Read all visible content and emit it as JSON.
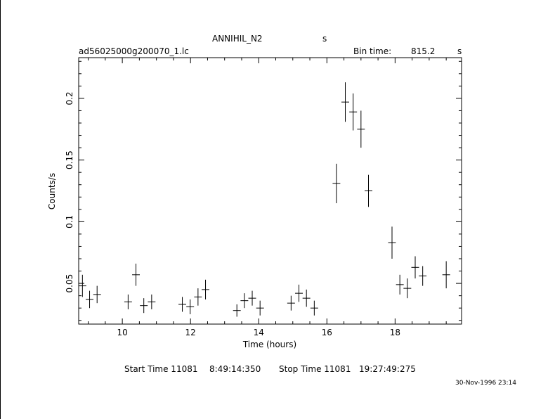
{
  "header": {
    "object": "ANNIHIL_N2",
    "unit_s": "s",
    "filename": "ad56025000g200070_1.lc",
    "bin_label": "Bin time:",
    "bin_value": "815.2",
    "bin_unit": "s"
  },
  "footer": {
    "start_label": "Start Time 11081",
    "start_value": "8:49:14:350",
    "stop_label": "Stop Time 11081",
    "stop_value": "19:27:49:275",
    "date_stamp": "30-Nov-1996 23:14"
  },
  "chart_data": {
    "type": "scatter",
    "xlabel": "Time (hours)",
    "ylabel": "Counts/s",
    "xlim": [
      8.72,
      19.95
    ],
    "ylim": [
      0.017,
      0.233
    ],
    "x_ticks": [
      10,
      12,
      14,
      16,
      18
    ],
    "x_tick_labels": [
      "10",
      "12",
      "14",
      "16",
      "18"
    ],
    "y_ticks": [
      0.05,
      0.1,
      0.15,
      0.2
    ],
    "y_tick_labels": [
      "0.05",
      "0.1",
      "0.15",
      "0.2"
    ],
    "x_error_hours": 0.113,
    "points": [
      {
        "x": 8.83,
        "y": 0.048,
        "err": 0.009
      },
      {
        "x": 9.04,
        "y": 0.037,
        "err": 0.007
      },
      {
        "x": 9.26,
        "y": 0.041,
        "err": 0.007
      },
      {
        "x": 10.17,
        "y": 0.035,
        "err": 0.006
      },
      {
        "x": 10.4,
        "y": 0.057,
        "err": 0.009
      },
      {
        "x": 10.63,
        "y": 0.032,
        "err": 0.006
      },
      {
        "x": 10.86,
        "y": 0.035,
        "err": 0.006
      },
      {
        "x": 11.76,
        "y": 0.033,
        "err": 0.006
      },
      {
        "x": 11.99,
        "y": 0.031,
        "err": 0.006
      },
      {
        "x": 12.22,
        "y": 0.039,
        "err": 0.007
      },
      {
        "x": 12.44,
        "y": 0.045,
        "err": 0.008
      },
      {
        "x": 13.36,
        "y": 0.028,
        "err": 0.005
      },
      {
        "x": 13.58,
        "y": 0.036,
        "err": 0.006
      },
      {
        "x": 13.81,
        "y": 0.038,
        "err": 0.006
      },
      {
        "x": 14.04,
        "y": 0.03,
        "err": 0.006
      },
      {
        "x": 14.95,
        "y": 0.034,
        "err": 0.006
      },
      {
        "x": 15.18,
        "y": 0.042,
        "err": 0.007
      },
      {
        "x": 15.4,
        "y": 0.038,
        "err": 0.007
      },
      {
        "x": 15.63,
        "y": 0.03,
        "err": 0.006
      },
      {
        "x": 16.28,
        "y": 0.131,
        "err": 0.016
      },
      {
        "x": 16.54,
        "y": 0.197,
        "err": 0.016
      },
      {
        "x": 16.77,
        "y": 0.189,
        "err": 0.015
      },
      {
        "x": 17.0,
        "y": 0.175,
        "err": 0.015
      },
      {
        "x": 17.22,
        "y": 0.125,
        "err": 0.013
      },
      {
        "x": 17.91,
        "y": 0.083,
        "err": 0.013
      },
      {
        "x": 18.14,
        "y": 0.049,
        "err": 0.008
      },
      {
        "x": 18.36,
        "y": 0.046,
        "err": 0.008
      },
      {
        "x": 18.59,
        "y": 0.063,
        "err": 0.009
      },
      {
        "x": 18.81,
        "y": 0.056,
        "err": 0.008
      },
      {
        "x": 19.5,
        "y": 0.057,
        "err": 0.011
      }
    ]
  }
}
